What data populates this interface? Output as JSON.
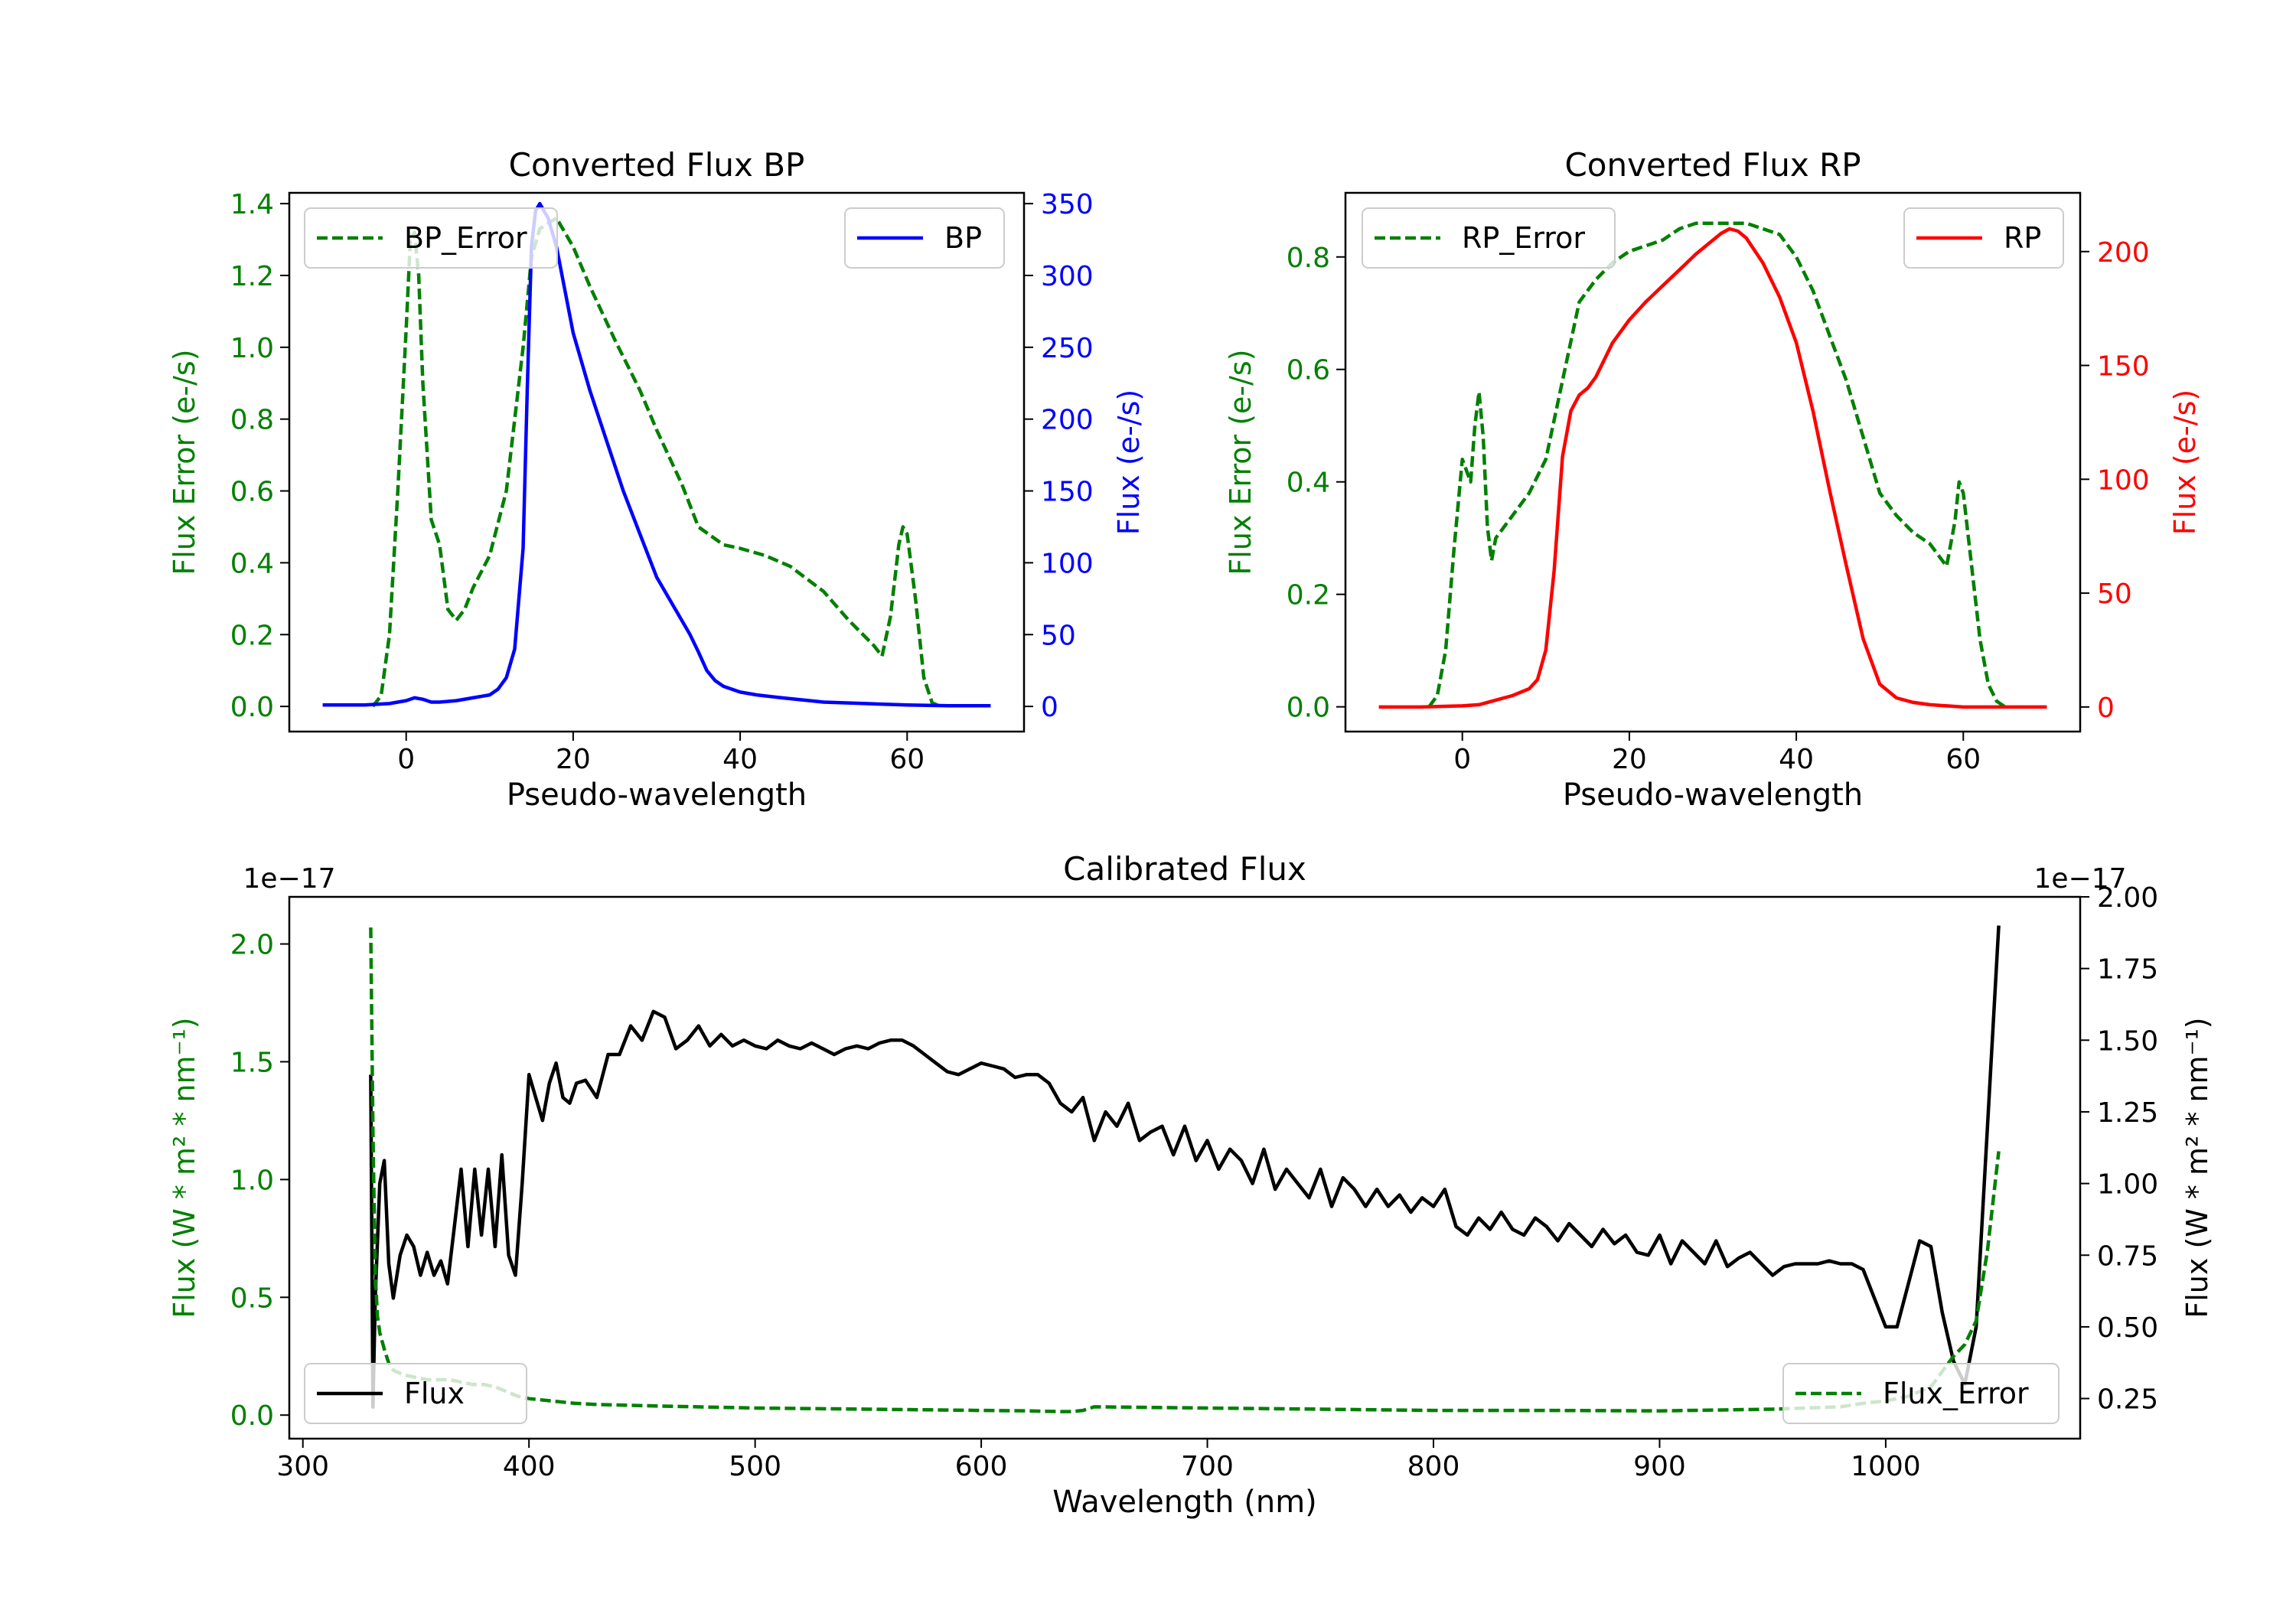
{
  "colors": {
    "error": "#008000",
    "bp": "#0000ff",
    "rp": "#ff0000",
    "flux": "#000000",
    "axis": "#000000"
  },
  "chart_data": [
    {
      "type": "line",
      "title": "Converted Flux BP",
      "xlabel": "Pseudo-wavelength",
      "ylabel_left": "Flux Error (e-/s)",
      "ylabel_right": "Flux (e-/s)",
      "xlim": [
        -14,
        74
      ],
      "ylim_left": [
        -0.07,
        1.43
      ],
      "ylim_right": [
        -17.5,
        357.5
      ],
      "xticks": [
        "0",
        "20",
        "40",
        "60"
      ],
      "yticks_left": [
        "0.0",
        "0.2",
        "0.4",
        "0.6",
        "0.8",
        "1.0",
        "1.2",
        "1.4"
      ],
      "yticks_right": [
        "0",
        "50",
        "100",
        "150",
        "200",
        "250",
        "300",
        "350"
      ],
      "legend_left": "BP_Error",
      "legend_right": "BP",
      "series": [
        {
          "name": "BP_Error",
          "axis": "left",
          "style": "dashed",
          "x": [
            -4,
            -3,
            -2,
            -1,
            0,
            0.5,
            1,
            1.5,
            2,
            3,
            4,
            5,
            6,
            7,
            8,
            10,
            12,
            14,
            15,
            16,
            18,
            20,
            22,
            25,
            28,
            30,
            33,
            35,
            38,
            40,
            43,
            46,
            50,
            53,
            56,
            57,
            58,
            59,
            59.5,
            60,
            61,
            62,
            63,
            64
          ],
          "y": [
            0,
            0.03,
            0.2,
            0.6,
            1.05,
            1.3,
            1.32,
            1.2,
            0.9,
            0.52,
            0.45,
            0.27,
            0.24,
            0.27,
            0.33,
            0.42,
            0.6,
            1.0,
            1.25,
            1.33,
            1.36,
            1.28,
            1.17,
            1.02,
            0.88,
            0.77,
            0.62,
            0.5,
            0.45,
            0.44,
            0.42,
            0.39,
            0.32,
            0.24,
            0.17,
            0.14,
            0.25,
            0.45,
            0.5,
            0.48,
            0.3,
            0.08,
            0.01,
            0
          ]
        },
        {
          "name": "BP",
          "axis": "right",
          "style": "solid",
          "x": [
            -10,
            -5,
            -2,
            0,
            1,
            2,
            3,
            4,
            6,
            8,
            10,
            11,
            12,
            13,
            14,
            14.5,
            15,
            15.5,
            16,
            17,
            18,
            19,
            20,
            22,
            24,
            26,
            28,
            30,
            32,
            34,
            35,
            36,
            37,
            38,
            40,
            42,
            45,
            50,
            55,
            60,
            65,
            70
          ],
          "y": [
            1,
            1,
            2,
            4,
            6,
            5,
            3,
            3,
            4,
            6,
            8,
            12,
            20,
            40,
            110,
            220,
            320,
            345,
            350,
            340,
            320,
            290,
            260,
            220,
            185,
            150,
            120,
            90,
            70,
            50,
            38,
            25,
            18,
            14,
            10,
            8,
            6,
            3,
            2,
            1,
            0.5,
            0.5
          ]
        }
      ]
    },
    {
      "type": "line",
      "title": "Converted Flux RP",
      "xlabel": "Pseudo-wavelength",
      "ylabel_left": "Flux Error (e-/s)",
      "ylabel_right": "Flux (e-/s)",
      "xlim": [
        -14,
        74
      ],
      "ylim_left": [
        -0.044,
        0.914
      ],
      "ylim_right": [
        -10.8,
        225.8
      ],
      "xticks": [
        "0",
        "20",
        "40",
        "60"
      ],
      "yticks_left": [
        "0.0",
        "0.2",
        "0.4",
        "0.6",
        "0.8"
      ],
      "yticks_right": [
        "0",
        "50",
        "100",
        "150",
        "200"
      ],
      "legend_left": "RP_Error",
      "legend_right": "RP",
      "series": [
        {
          "name": "RP_Error",
          "axis": "left",
          "style": "dashed",
          "x": [
            -4,
            -3,
            -2,
            -1,
            0,
            1,
            1.5,
            2,
            2.5,
            3,
            3.5,
            4,
            5,
            6,
            8,
            10,
            12,
            14,
            16,
            18,
            20,
            22,
            24,
            26,
            28,
            30,
            32,
            34,
            36,
            38,
            40,
            42,
            44,
            46,
            48,
            50,
            52,
            54,
            56,
            57,
            58,
            59,
            59.5,
            60,
            61,
            62,
            63,
            64,
            65
          ],
          "y": [
            0,
            0.02,
            0.1,
            0.28,
            0.44,
            0.4,
            0.5,
            0.56,
            0.48,
            0.32,
            0.26,
            0.3,
            0.32,
            0.34,
            0.38,
            0.44,
            0.58,
            0.72,
            0.76,
            0.79,
            0.81,
            0.82,
            0.83,
            0.85,
            0.86,
            0.86,
            0.86,
            0.86,
            0.85,
            0.84,
            0.8,
            0.74,
            0.66,
            0.58,
            0.48,
            0.38,
            0.34,
            0.31,
            0.29,
            0.27,
            0.25,
            0.33,
            0.4,
            0.38,
            0.25,
            0.12,
            0.04,
            0.01,
            0
          ]
        },
        {
          "name": "RP",
          "axis": "right",
          "style": "solid",
          "x": [
            -10,
            -5,
            0,
            2,
            4,
            6,
            8,
            9,
            10,
            11,
            12,
            13,
            14,
            15,
            16,
            18,
            20,
            22,
            24,
            26,
            28,
            30,
            31,
            32,
            33,
            34,
            36,
            38,
            40,
            42,
            44,
            46,
            48,
            50,
            52,
            54,
            56,
            58,
            60,
            65,
            70
          ],
          "y": [
            0,
            0,
            0.5,
            1,
            3,
            5,
            8,
            12,
            25,
            60,
            110,
            130,
            137,
            140,
            145,
            160,
            170,
            178,
            185,
            192,
            199,
            205,
            208,
            210,
            209,
            206,
            195,
            180,
            160,
            130,
            95,
            62,
            30,
            10,
            4,
            2,
            1,
            0.5,
            0,
            0,
            0
          ]
        }
      ]
    },
    {
      "type": "line",
      "title": "Calibrated Flux",
      "xlabel": "Wavelength (nm)",
      "ylabel_left": "Flux (W * m² * nm⁻¹)",
      "ylabel_right": "Flux (W * m² * nm⁻¹)",
      "offset_left": "1e−17",
      "offset_right": "1e−17",
      "xlim": [
        294,
        1086
      ],
      "ylim_left": [
        -0.1,
        2.2
      ],
      "ylim_right": [
        0.11,
        2.0
      ],
      "xticks": [
        "300",
        "400",
        "500",
        "600",
        "700",
        "800",
        "900",
        "1000"
      ],
      "yticks_left": [
        "0.0",
        "0.5",
        "1.0",
        "1.5",
        "2.0"
      ],
      "yticks_right": [
        "0.25",
        "0.50",
        "0.75",
        "1.00",
        "1.25",
        "1.50",
        "1.75",
        "2.00"
      ],
      "legend_left": "Flux",
      "legend_right": "Flux_Error",
      "series": [
        {
          "name": "Flux",
          "axis": "right",
          "style": "solid",
          "x": [
            330,
            331,
            332,
            334,
            336,
            338,
            340,
            343,
            346,
            349,
            352,
            355,
            358,
            361,
            364,
            367,
            370,
            373,
            376,
            379,
            382,
            385,
            388,
            391,
            394,
            397,
            400,
            403,
            406,
            409,
            412,
            415,
            418,
            421,
            425,
            430,
            435,
            440,
            445,
            450,
            455,
            460,
            465,
            470,
            475,
            480,
            485,
            490,
            495,
            500,
            505,
            510,
            515,
            520,
            525,
            530,
            535,
            540,
            545,
            550,
            555,
            560,
            565,
            570,
            575,
            580,
            585,
            590,
            595,
            600,
            605,
            610,
            615,
            620,
            625,
            630,
            635,
            640,
            645,
            650,
            655,
            660,
            665,
            670,
            675,
            680,
            685,
            690,
            695,
            700,
            705,
            710,
            715,
            720,
            725,
            730,
            735,
            740,
            745,
            750,
            755,
            760,
            765,
            770,
            775,
            780,
            785,
            790,
            795,
            800,
            805,
            810,
            815,
            820,
            825,
            830,
            835,
            840,
            845,
            850,
            855,
            860,
            865,
            870,
            875,
            880,
            885,
            890,
            895,
            900,
            905,
            910,
            915,
            920,
            925,
            930,
            935,
            940,
            945,
            950,
            955,
            960,
            965,
            970,
            975,
            980,
            985,
            990,
            995,
            1000,
            1005,
            1010,
            1015,
            1020,
            1025,
            1030,
            1035,
            1040,
            1045,
            1050
          ],
          "y": [
            1.38,
            0.22,
            0.6,
            1.0,
            1.08,
            0.72,
            0.6,
            0.75,
            0.82,
            0.78,
            0.68,
            0.76,
            0.68,
            0.73,
            0.65,
            0.85,
            1.05,
            0.78,
            1.05,
            0.82,
            1.05,
            0.78,
            1.1,
            0.75,
            0.68,
            1.0,
            1.38,
            1.3,
            1.22,
            1.35,
            1.42,
            1.3,
            1.28,
            1.35,
            1.36,
            1.3,
            1.45,
            1.45,
            1.55,
            1.5,
            1.6,
            1.58,
            1.47,
            1.5,
            1.55,
            1.48,
            1.52,
            1.48,
            1.5,
            1.48,
            1.47,
            1.5,
            1.48,
            1.47,
            1.49,
            1.47,
            1.45,
            1.47,
            1.48,
            1.47,
            1.49,
            1.5,
            1.5,
            1.48,
            1.45,
            1.42,
            1.39,
            1.38,
            1.4,
            1.42,
            1.41,
            1.4,
            1.37,
            1.38,
            1.38,
            1.35,
            1.28,
            1.25,
            1.3,
            1.15,
            1.25,
            1.2,
            1.28,
            1.15,
            1.18,
            1.2,
            1.1,
            1.2,
            1.08,
            1.15,
            1.05,
            1.12,
            1.08,
            1.0,
            1.12,
            0.98,
            1.05,
            1.0,
            0.95,
            1.05,
            0.92,
            1.02,
            0.98,
            0.92,
            0.98,
            0.92,
            0.96,
            0.9,
            0.95,
            0.92,
            0.98,
            0.85,
            0.82,
            0.88,
            0.84,
            0.9,
            0.84,
            0.82,
            0.88,
            0.85,
            0.8,
            0.86,
            0.82,
            0.78,
            0.84,
            0.79,
            0.82,
            0.76,
            0.75,
            0.82,
            0.72,
            0.8,
            0.76,
            0.72,
            0.8,
            0.71,
            0.74,
            0.76,
            0.72,
            0.68,
            0.71,
            0.72,
            0.72,
            0.72,
            0.73,
            0.72,
            0.72,
            0.7,
            0.6,
            0.5,
            0.5,
            0.65,
            0.8,
            0.78,
            0.55,
            0.38,
            0.3,
            0.5,
            1.2,
            1.9
          ]
        },
        {
          "name": "Flux_Error",
          "axis": "left",
          "style": "dashed",
          "x": [
            330,
            331,
            332,
            333,
            334,
            336,
            338,
            340,
            345,
            350,
            355,
            360,
            365,
            370,
            375,
            380,
            385,
            390,
            395,
            400,
            410,
            420,
            430,
            450,
            500,
            550,
            600,
            620,
            635,
            640,
            645,
            650,
            700,
            750,
            800,
            850,
            900,
            950,
            980,
            990,
            1000,
            1010,
            1020,
            1030,
            1035,
            1040,
            1045,
            1050
          ],
          "y": [
            2.07,
            1.2,
            0.6,
            0.42,
            0.35,
            0.28,
            0.22,
            0.19,
            0.17,
            0.16,
            0.15,
            0.15,
            0.15,
            0.14,
            0.13,
            0.13,
            0.12,
            0.1,
            0.08,
            0.07,
            0.06,
            0.05,
            0.045,
            0.04,
            0.03,
            0.025,
            0.02,
            0.018,
            0.015,
            0.015,
            0.02,
            0.035,
            0.03,
            0.025,
            0.02,
            0.02,
            0.018,
            0.025,
            0.035,
            0.05,
            0.06,
            0.08,
            0.12,
            0.25,
            0.3,
            0.4,
            0.7,
            1.12
          ]
        }
      ]
    }
  ]
}
